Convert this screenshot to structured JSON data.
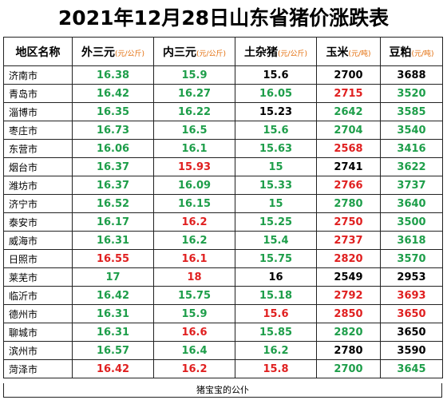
{
  "title": "2021年12月28日山东省猪价涨跌表",
  "header": {
    "region": "地区名称",
    "col1": {
      "label": "外三元",
      "unit": "(元/公斤)"
    },
    "col2": {
      "label": "内三元",
      "unit": "(元/公斤)"
    },
    "col3": {
      "label": "土杂猪",
      "unit": "(元/公斤)"
    },
    "col4": {
      "label": "玉米",
      "unit": "(元/吨)"
    },
    "col5": {
      "label": "豆粕",
      "unit": "(元/吨)"
    }
  },
  "colors": {
    "green": "#1e9e4a",
    "red": "#e02020",
    "black": "#000000",
    "unit": "#e36c09"
  },
  "rows": [
    {
      "region": "济南市",
      "cells": [
        {
          "v": "16.38",
          "c": "green"
        },
        {
          "v": "15.9",
          "c": "green"
        },
        {
          "v": "15.6",
          "c": "black"
        },
        {
          "v": "2700",
          "c": "black"
        },
        {
          "v": "3688",
          "c": "black"
        }
      ]
    },
    {
      "region": "青岛市",
      "cells": [
        {
          "v": "16.42",
          "c": "green"
        },
        {
          "v": "16.27",
          "c": "green"
        },
        {
          "v": "16.05",
          "c": "green"
        },
        {
          "v": "2715",
          "c": "red"
        },
        {
          "v": "3520",
          "c": "green"
        }
      ]
    },
    {
      "region": "淄博市",
      "cells": [
        {
          "v": "16.35",
          "c": "green"
        },
        {
          "v": "16.22",
          "c": "green"
        },
        {
          "v": "15.23",
          "c": "black"
        },
        {
          "v": "2642",
          "c": "green"
        },
        {
          "v": "3585",
          "c": "green"
        }
      ]
    },
    {
      "region": "枣庄市",
      "cells": [
        {
          "v": "16.73",
          "c": "green"
        },
        {
          "v": "16.5",
          "c": "green"
        },
        {
          "v": "15.6",
          "c": "green"
        },
        {
          "v": "2704",
          "c": "green"
        },
        {
          "v": "3540",
          "c": "green"
        }
      ]
    },
    {
      "region": "东营市",
      "cells": [
        {
          "v": "16.06",
          "c": "green"
        },
        {
          "v": "16.1",
          "c": "green"
        },
        {
          "v": "15.63",
          "c": "green"
        },
        {
          "v": "2568",
          "c": "red"
        },
        {
          "v": "3416",
          "c": "green"
        }
      ]
    },
    {
      "region": "烟台市",
      "cells": [
        {
          "v": "16.37",
          "c": "green"
        },
        {
          "v": "15.93",
          "c": "red"
        },
        {
          "v": "15",
          "c": "green"
        },
        {
          "v": "2741",
          "c": "black"
        },
        {
          "v": "3622",
          "c": "green"
        }
      ]
    },
    {
      "region": "潍坊市",
      "cells": [
        {
          "v": "16.37",
          "c": "green"
        },
        {
          "v": "16.09",
          "c": "green"
        },
        {
          "v": "15.33",
          "c": "green"
        },
        {
          "v": "2766",
          "c": "red"
        },
        {
          "v": "3737",
          "c": "green"
        }
      ]
    },
    {
      "region": "济宁市",
      "cells": [
        {
          "v": "16.52",
          "c": "green"
        },
        {
          "v": "16.15",
          "c": "green"
        },
        {
          "v": "15",
          "c": "green"
        },
        {
          "v": "2780",
          "c": "green"
        },
        {
          "v": "3640",
          "c": "green"
        }
      ]
    },
    {
      "region": "泰安市",
      "cells": [
        {
          "v": "16.17",
          "c": "green"
        },
        {
          "v": "16.2",
          "c": "red"
        },
        {
          "v": "15.25",
          "c": "green"
        },
        {
          "v": "2750",
          "c": "red"
        },
        {
          "v": "3500",
          "c": "green"
        }
      ]
    },
    {
      "region": "威海市",
      "cells": [
        {
          "v": "16.31",
          "c": "green"
        },
        {
          "v": "16.2",
          "c": "green"
        },
        {
          "v": "15.4",
          "c": "green"
        },
        {
          "v": "2737",
          "c": "red"
        },
        {
          "v": "3618",
          "c": "green"
        }
      ]
    },
    {
      "region": "日照市",
      "cells": [
        {
          "v": "16.55",
          "c": "red"
        },
        {
          "v": "16.1",
          "c": "red"
        },
        {
          "v": "15.75",
          "c": "green"
        },
        {
          "v": "2820",
          "c": "red"
        },
        {
          "v": "3570",
          "c": "green"
        }
      ]
    },
    {
      "region": "莱芜市",
      "cells": [
        {
          "v": "17",
          "c": "green"
        },
        {
          "v": "18",
          "c": "red"
        },
        {
          "v": "16",
          "c": "black"
        },
        {
          "v": "2549",
          "c": "black"
        },
        {
          "v": "2953",
          "c": "black"
        }
      ]
    },
    {
      "region": "临沂市",
      "cells": [
        {
          "v": "16.42",
          "c": "green"
        },
        {
          "v": "15.75",
          "c": "green"
        },
        {
          "v": "15.18",
          "c": "green"
        },
        {
          "v": "2792",
          "c": "red"
        },
        {
          "v": "3693",
          "c": "red"
        }
      ]
    },
    {
      "region": "德州市",
      "cells": [
        {
          "v": "16.31",
          "c": "green"
        },
        {
          "v": "15.9",
          "c": "green"
        },
        {
          "v": "15.6",
          "c": "red"
        },
        {
          "v": "2850",
          "c": "red"
        },
        {
          "v": "3650",
          "c": "red"
        }
      ]
    },
    {
      "region": "聊城市",
      "cells": [
        {
          "v": "16.31",
          "c": "green"
        },
        {
          "v": "16.6",
          "c": "red"
        },
        {
          "v": "15.85",
          "c": "green"
        },
        {
          "v": "2820",
          "c": "green"
        },
        {
          "v": "3650",
          "c": "black"
        }
      ]
    },
    {
      "region": "滨州市",
      "cells": [
        {
          "v": "16.57",
          "c": "green"
        },
        {
          "v": "16.4",
          "c": "green"
        },
        {
          "v": "16.2",
          "c": "green"
        },
        {
          "v": "2780",
          "c": "black"
        },
        {
          "v": "3590",
          "c": "black"
        }
      ]
    },
    {
      "region": "菏泽市",
      "cells": [
        {
          "v": "16.42",
          "c": "red"
        },
        {
          "v": "16.2",
          "c": "red"
        },
        {
          "v": "15.8",
          "c": "red"
        },
        {
          "v": "2700",
          "c": "green"
        },
        {
          "v": "3645",
          "c": "green"
        }
      ]
    }
  ],
  "footer": "猪宝宝的公仆"
}
